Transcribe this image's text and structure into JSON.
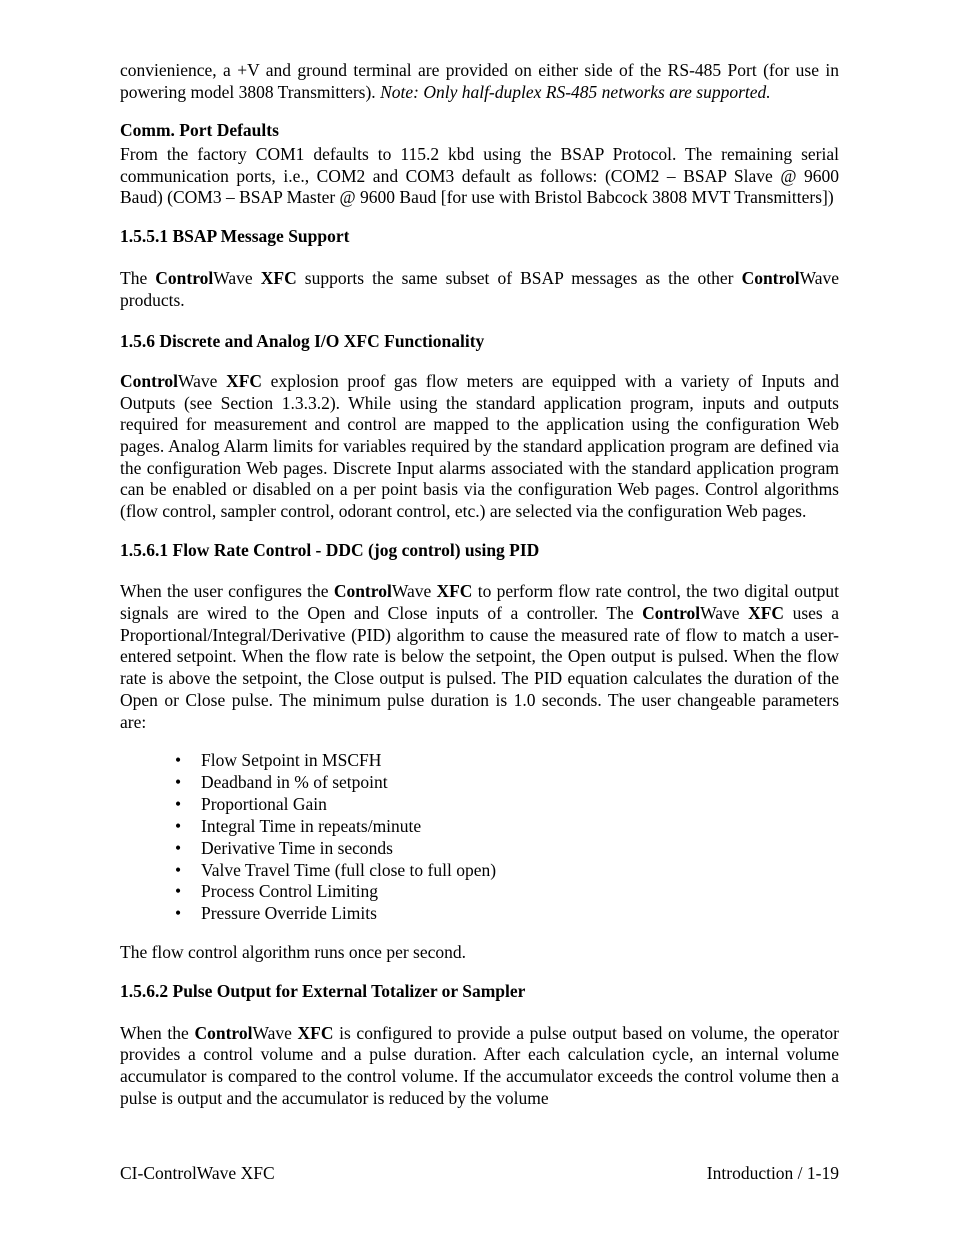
{
  "intro": {
    "p1_a": "convienience, a +V and ground terminal are provided on either side of the RS-485 Port (for use in powering model 3808 Transmitters). ",
    "p1_note": "Note: Only half-duplex RS-485 networks are supported."
  },
  "comm_defaults": {
    "heading": "Comm. Port Defaults",
    "body": "From the factory COM1 defaults to 115.2 kbd using the BSAP Protocol. The remaining serial communication ports, i.e., COM2 and COM3 default as follows: (COM2 – BSAP Slave @ 9600 Baud) (COM3 – BSAP Master @ 9600 Baud [for use with Bristol Babcock 3808 MVT Transmitters])"
  },
  "s1551": {
    "heading": "1.5.5.1  BSAP Message Support",
    "body_a": "The ",
    "body_b": "Control",
    "body_c": "Wave ",
    "body_d": "XFC",
    "body_e": " supports the same subset of BSAP messages as the other ",
    "body_f": "Control",
    "body_g": "Wave products."
  },
  "s156": {
    "heading": "1.5.6  Discrete and Analog I/O XFC Functionality",
    "body_a": "Control",
    "body_b": "Wave ",
    "body_c": "XFC",
    "body_d": " explosion proof gas flow meters are equipped with a variety of Inputs and Outputs (see Section 1.3.3.2). While using the standard application program, inputs and outputs required for measurement and control are mapped to the application using the configuration Web pages. Analog Alarm limits for variables required by the standard application program are defined via the configuration Web pages. Discrete Input alarms associated with the standard application program can be enabled or disabled on a per point basis via the configuration Web pages. Control algorithms (flow control, sampler control, odorant control, etc.) are selected via the configuration Web pages."
  },
  "s1561": {
    "heading": "1.5.6.1  Flow Rate Control - DDC (jog control) using PID",
    "body_a": "When the user configures the ",
    "body_b": "Control",
    "body_c": "Wave ",
    "body_d": "XFC",
    "body_e": " to perform flow rate control, the two digital output signals are wired to the Open and Close inputs of a controller. The ",
    "body_f": "Control",
    "body_g": "Wave ",
    "body_h": "XFC",
    "body_i": " uses a Proportional/Integral/Derivative (PID) algorithm to cause the measured rate of flow to match a user-entered setpoint. When the flow rate is below the setpoint, the Open output is pulsed. When the flow rate is above the setpoint, the Close output is pulsed. The PID equation calculates the duration of the Open or Close pulse. The minimum pulse duration is 1.0 seconds. The user changeable parameters are:",
    "bullets": [
      "Flow Setpoint in MSCFH",
      "Deadband in % of setpoint",
      "Proportional Gain",
      "Integral Time in repeats/minute",
      "Derivative Time in seconds",
      "Valve Travel Time (full close to full open)",
      "Process Control Limiting",
      "Pressure Override Limits"
    ],
    "closing": "The flow control algorithm runs once per second."
  },
  "s1562": {
    "heading": "1.5.6.2  Pulse Output for External Totalizer or Sampler",
    "body_a": "When the ",
    "body_b": "Control",
    "body_c": "Wave ",
    "body_d": "XFC",
    "body_e": " is configured to provide a pulse output based on volume, the operator provides a control volume and a pulse duration. After each calculation cycle, an internal volume accumulator is compared to the control volume. If the accumulator exceeds the control volume then a pulse is output and the accumulator is reduced by the volume"
  },
  "footer": {
    "left": "CI-ControlWave XFC",
    "right": "Introduction / 1-19"
  }
}
